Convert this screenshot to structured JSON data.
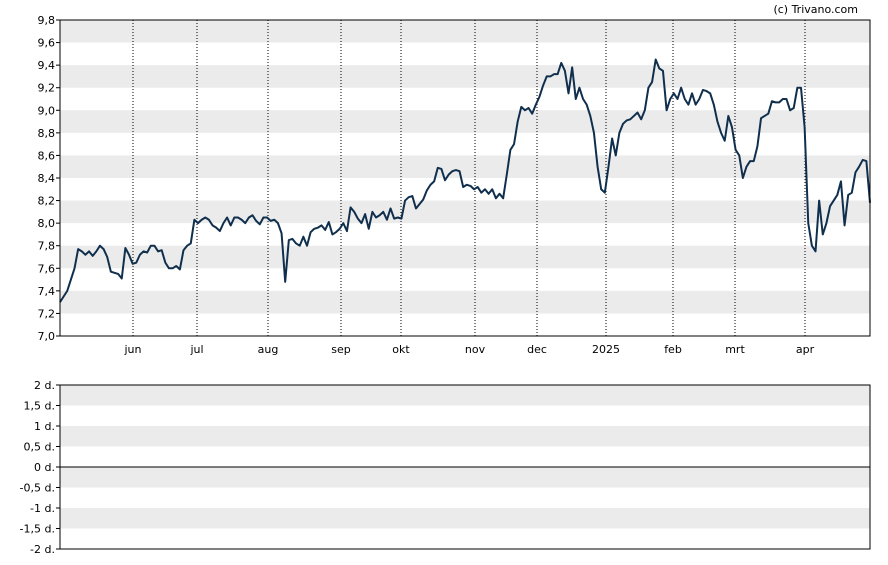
{
  "credit": "(c) Trivano.com",
  "colors": {
    "line": "#102f4d",
    "band": "#ebebeb",
    "axis": "#000000",
    "grid": "#000000",
    "background": "#ffffff"
  },
  "chart_data": [
    {
      "type": "line",
      "title": "",
      "xlabel": "",
      "ylabel": "",
      "ylim": [
        7.0,
        9.8
      ],
      "y_ticks": [
        "7,0",
        "7,2",
        "7,4",
        "7,6",
        "7,8",
        "8,0",
        "8,2",
        "8,4",
        "8,6",
        "8,8",
        "9,0",
        "9,2",
        "9,4",
        "9,6",
        "9,8"
      ],
      "x_ticks": [
        "jun",
        "jul",
        "aug",
        "sep",
        "okt",
        "nov",
        "dec",
        "2025",
        "feb",
        "mrt",
        "apr"
      ],
      "grid": "vertical dotted at month starts, alternating horizontal bands",
      "legend": "none",
      "series": [
        {
          "values": [
            7.3,
            7.35,
            7.4,
            7.5,
            7.6,
            7.77,
            7.75,
            7.72,
            7.75,
            7.71,
            7.75,
            7.8,
            7.77,
            7.7,
            7.57,
            7.56,
            7.55,
            7.51,
            7.78,
            7.72,
            7.64,
            7.65,
            7.72,
            7.75,
            7.74,
            7.8,
            7.8,
            7.75,
            7.76,
            7.65,
            7.6,
            7.6,
            7.62,
            7.59,
            7.76,
            7.8,
            7.82,
            8.03,
            8.0,
            8.03,
            8.05,
            8.03,
            7.98,
            7.96,
            7.93,
            8.0,
            8.05,
            7.98,
            8.05,
            8.05,
            8.03,
            8.0,
            8.05,
            8.07,
            8.02,
            7.99,
            8.05,
            8.05,
            8.02,
            8.03,
            8.0,
            7.91,
            7.48,
            7.85,
            7.86,
            7.82,
            7.8,
            7.88,
            7.8,
            7.92,
            7.95,
            7.96,
            7.98,
            7.94,
            8.01,
            7.9,
            7.92,
            7.95,
            8.0,
            7.93,
            8.14,
            8.1,
            8.04,
            8.0,
            8.08,
            7.95,
            8.1,
            8.05,
            8.07,
            8.1,
            8.03,
            8.13,
            8.04,
            8.05,
            8.04,
            8.2,
            8.23,
            8.24,
            8.13,
            8.17,
            8.21,
            8.29,
            8.34,
            8.37,
            8.49,
            8.48,
            8.38,
            8.43,
            8.46,
            8.47,
            8.46,
            8.32,
            8.34,
            8.33,
            8.3,
            8.32,
            8.27,
            8.3,
            8.26,
            8.3,
            8.22,
            8.26,
            8.22,
            8.43,
            8.65,
            8.7,
            8.9,
            9.03,
            9.0,
            9.02,
            8.97,
            9.05,
            9.12,
            9.22,
            9.3,
            9.3,
            9.32,
            9.32,
            9.42,
            9.35,
            9.15,
            9.38,
            9.1,
            9.2,
            9.1,
            9.05,
            8.95,
            8.8,
            8.5,
            8.3,
            8.27,
            8.5,
            8.75,
            8.6,
            8.8,
            8.88,
            8.91,
            8.92,
            8.95,
            8.98,
            8.92,
            9.0,
            9.2,
            9.25,
            9.45,
            9.37,
            9.35,
            9.0,
            9.1,
            9.15,
            9.1,
            9.2,
            9.1,
            9.05,
            9.15,
            9.05,
            9.1,
            9.18,
            9.17,
            9.15,
            9.05,
            8.9,
            8.8,
            8.73,
            8.95,
            8.85,
            8.65,
            8.6,
            8.4,
            8.5,
            8.55,
            8.55,
            8.68,
            8.93,
            8.95,
            8.97,
            9.08,
            9.07,
            9.07,
            9.1,
            9.1,
            9.0,
            9.02,
            9.2,
            9.2,
            8.85,
            8.0,
            7.8,
            7.75,
            8.2,
            7.9,
            8.0,
            8.15,
            8.2,
            8.25,
            8.37,
            7.98,
            8.25,
            8.27,
            8.45,
            8.5,
            8.56,
            8.55,
            8.18
          ]
        }
      ]
    },
    {
      "type": "line",
      "title": "",
      "xlabel": "",
      "ylabel": "",
      "ylim": [
        -2,
        2
      ],
      "y_ticks": [
        "2 d.",
        "1,5 d.",
        "1 d.",
        "0,5 d.",
        "0 d.",
        "-0,5 d.",
        "-1 d.",
        "-1,5 d.",
        "-2 d."
      ],
      "grid": "alternating horizontal bands",
      "legend": "none",
      "reference_line": 0,
      "series": []
    }
  ]
}
